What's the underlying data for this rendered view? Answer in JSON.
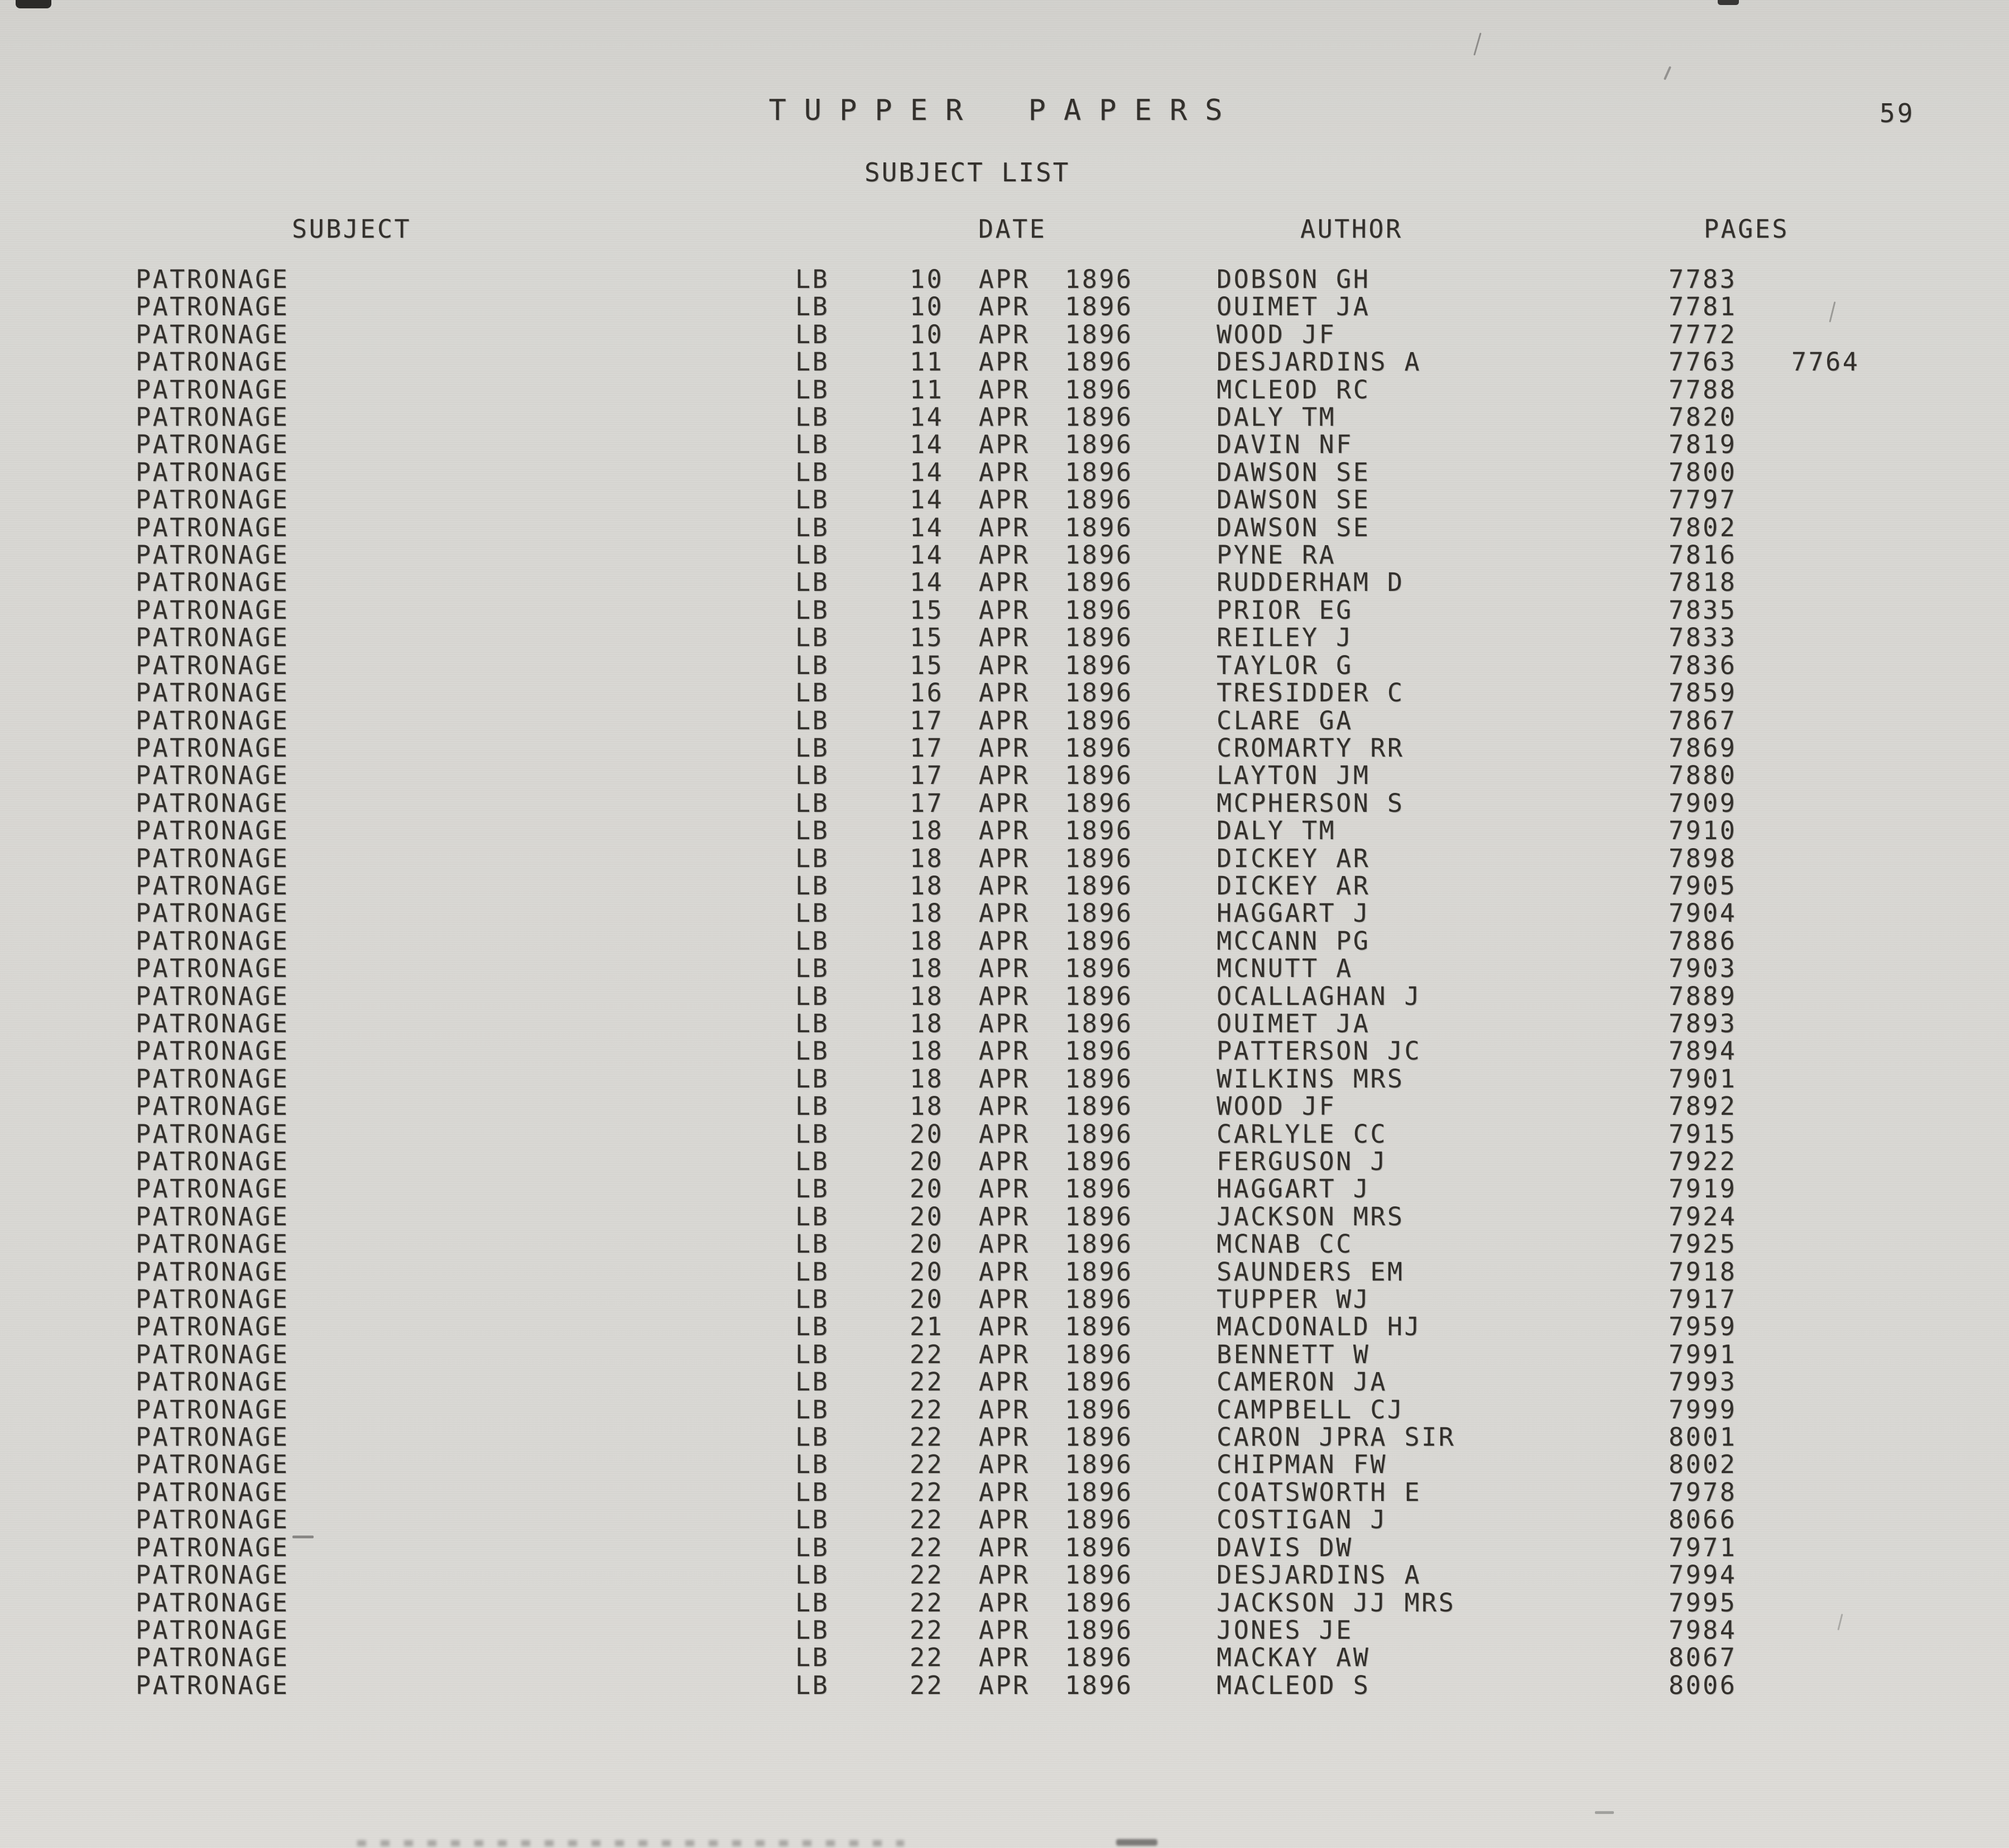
{
  "page": {
    "title": "TUPPER PAPERS",
    "subtitle": "SUBJECT LIST",
    "page_number": "59"
  },
  "colors": {
    "paper": "#d8d7d3",
    "ink": "#33302c"
  },
  "table": {
    "headers": {
      "subject": "SUBJECT",
      "date": "DATE",
      "author": "AUTHOR",
      "pages": "PAGES"
    },
    "rows": [
      {
        "subject": "PATRONAGE",
        "series": "LB",
        "date": "10 APR 1896",
        "author": "DOBSON GH",
        "page": "7783",
        "page2": ""
      },
      {
        "subject": "PATRONAGE",
        "series": "LB",
        "date": "10 APR 1896",
        "author": "OUIMET JA",
        "page": "7781",
        "page2": ""
      },
      {
        "subject": "PATRONAGE",
        "series": "LB",
        "date": "10 APR 1896",
        "author": "WOOD JF",
        "page": "7772",
        "page2": ""
      },
      {
        "subject": "PATRONAGE",
        "series": "LB",
        "date": "11 APR 1896",
        "author": "DESJARDINS A",
        "page": "7763",
        "page2": "7764"
      },
      {
        "subject": "PATRONAGE",
        "series": "LB",
        "date": "11 APR 1896",
        "author": "MCLEOD RC",
        "page": "7788",
        "page2": ""
      },
      {
        "subject": "PATRONAGE",
        "series": "LB",
        "date": "14 APR 1896",
        "author": "DALY TM",
        "page": "7820",
        "page2": ""
      },
      {
        "subject": "PATRONAGE",
        "series": "LB",
        "date": "14 APR 1896",
        "author": "DAVIN NF",
        "page": "7819",
        "page2": ""
      },
      {
        "subject": "PATRONAGE",
        "series": "LB",
        "date": "14 APR 1896",
        "author": "DAWSON SE",
        "page": "7800",
        "page2": ""
      },
      {
        "subject": "PATRONAGE",
        "series": "LB",
        "date": "14 APR 1896",
        "author": "DAWSON SE",
        "page": "7797",
        "page2": ""
      },
      {
        "subject": "PATRONAGE",
        "series": "LB",
        "date": "14 APR 1896",
        "author": "DAWSON SE",
        "page": "7802",
        "page2": ""
      },
      {
        "subject": "PATRONAGE",
        "series": "LB",
        "date": "14 APR 1896",
        "author": "PYNE RA",
        "page": "7816",
        "page2": ""
      },
      {
        "subject": "PATRONAGE",
        "series": "LB",
        "date": "14 APR 1896",
        "author": "RUDDERHAM D",
        "page": "7818",
        "page2": ""
      },
      {
        "subject": "PATRONAGE",
        "series": "LB",
        "date": "15 APR 1896",
        "author": "PRIOR EG",
        "page": "7835",
        "page2": ""
      },
      {
        "subject": "PATRONAGE",
        "series": "LB",
        "date": "15 APR 1896",
        "author": "REILEY J",
        "page": "7833",
        "page2": ""
      },
      {
        "subject": "PATRONAGE",
        "series": "LB",
        "date": "15 APR 1896",
        "author": "TAYLOR G",
        "page": "7836",
        "page2": ""
      },
      {
        "subject": "PATRONAGE",
        "series": "LB",
        "date": "16 APR 1896",
        "author": "TRESIDDER C",
        "page": "7859",
        "page2": ""
      },
      {
        "subject": "PATRONAGE",
        "series": "LB",
        "date": "17 APR 1896",
        "author": "CLARE GA",
        "page": "7867",
        "page2": ""
      },
      {
        "subject": "PATRONAGE",
        "series": "LB",
        "date": "17 APR 1896",
        "author": "CROMARTY RR",
        "page": "7869",
        "page2": ""
      },
      {
        "subject": "PATRONAGE",
        "series": "LB",
        "date": "17 APR 1896",
        "author": "LAYTON JM",
        "page": "7880",
        "page2": ""
      },
      {
        "subject": "PATRONAGE",
        "series": "LB",
        "date": "17 APR 1896",
        "author": "MCPHERSON S",
        "page": "7909",
        "page2": ""
      },
      {
        "subject": "PATRONAGE",
        "series": "LB",
        "date": "18 APR 1896",
        "author": "DALY TM",
        "page": "7910",
        "page2": ""
      },
      {
        "subject": "PATRONAGE",
        "series": "LB",
        "date": "18 APR 1896",
        "author": "DICKEY AR",
        "page": "7898",
        "page2": ""
      },
      {
        "subject": "PATRONAGE",
        "series": "LB",
        "date": "18 APR 1896",
        "author": "DICKEY AR",
        "page": "7905",
        "page2": ""
      },
      {
        "subject": "PATRONAGE",
        "series": "LB",
        "date": "18 APR 1896",
        "author": "HAGGART J",
        "page": "7904",
        "page2": ""
      },
      {
        "subject": "PATRONAGE",
        "series": "LB",
        "date": "18 APR 1896",
        "author": "MCCANN PG",
        "page": "7886",
        "page2": ""
      },
      {
        "subject": "PATRONAGE",
        "series": "LB",
        "date": "18 APR 1896",
        "author": "MCNUTT A",
        "page": "7903",
        "page2": ""
      },
      {
        "subject": "PATRONAGE",
        "series": "LB",
        "date": "18 APR 1896",
        "author": "OCALLAGHAN J",
        "page": "7889",
        "page2": ""
      },
      {
        "subject": "PATRONAGE",
        "series": "LB",
        "date": "18 APR 1896",
        "author": "OUIMET JA",
        "page": "7893",
        "page2": ""
      },
      {
        "subject": "PATRONAGE",
        "series": "LB",
        "date": "18 APR 1896",
        "author": "PATTERSON JC",
        "page": "7894",
        "page2": ""
      },
      {
        "subject": "PATRONAGE",
        "series": "LB",
        "date": "18 APR 1896",
        "author": "WILKINS MRS",
        "page": "7901",
        "page2": ""
      },
      {
        "subject": "PATRONAGE",
        "series": "LB",
        "date": "18 APR 1896",
        "author": "WOOD JF",
        "page": "7892",
        "page2": ""
      },
      {
        "subject": "PATRONAGE",
        "series": "LB",
        "date": "20 APR 1896",
        "author": "CARLYLE CC",
        "page": "7915",
        "page2": ""
      },
      {
        "subject": "PATRONAGE",
        "series": "LB",
        "date": "20 APR 1896",
        "author": "FERGUSON J",
        "page": "7922",
        "page2": ""
      },
      {
        "subject": "PATRONAGE",
        "series": "LB",
        "date": "20 APR 1896",
        "author": "HAGGART J",
        "page": "7919",
        "page2": ""
      },
      {
        "subject": "PATRONAGE",
        "series": "LB",
        "date": "20 APR 1896",
        "author": "JACKSON MRS",
        "page": "7924",
        "page2": ""
      },
      {
        "subject": "PATRONAGE",
        "series": "LB",
        "date": "20 APR 1896",
        "author": "MCNAB CC",
        "page": "7925",
        "page2": ""
      },
      {
        "subject": "PATRONAGE",
        "series": "LB",
        "date": "20 APR 1896",
        "author": "SAUNDERS EM",
        "page": "7918",
        "page2": ""
      },
      {
        "subject": "PATRONAGE",
        "series": "LB",
        "date": "20 APR 1896",
        "author": "TUPPER WJ",
        "page": "7917",
        "page2": ""
      },
      {
        "subject": "PATRONAGE",
        "series": "LB",
        "date": "21 APR 1896",
        "author": "MACDONALD HJ",
        "page": "7959",
        "page2": ""
      },
      {
        "subject": "PATRONAGE",
        "series": "LB",
        "date": "22 APR 1896",
        "author": "BENNETT W",
        "page": "7991",
        "page2": ""
      },
      {
        "subject": "PATRONAGE",
        "series": "LB",
        "date": "22 APR 1896",
        "author": "CAMERON JA",
        "page": "7993",
        "page2": ""
      },
      {
        "subject": "PATRONAGE",
        "series": "LB",
        "date": "22 APR 1896",
        "author": "CAMPBELL CJ",
        "page": "7999",
        "page2": ""
      },
      {
        "subject": "PATRONAGE",
        "series": "LB",
        "date": "22 APR 1896",
        "author": "CARON JPRA SIR",
        "page": "8001",
        "page2": ""
      },
      {
        "subject": "PATRONAGE",
        "series": "LB",
        "date": "22 APR 1896",
        "author": "CHIPMAN FW",
        "page": "8002",
        "page2": ""
      },
      {
        "subject": "PATRONAGE",
        "series": "LB",
        "date": "22 APR 1896",
        "author": "COATSWORTH E",
        "page": "7978",
        "page2": ""
      },
      {
        "subject": "PATRONAGE",
        "series": "LB",
        "date": "22 APR 1896",
        "author": "COSTIGAN J",
        "page": "8066",
        "page2": ""
      },
      {
        "subject": "PATRONAGE",
        "series": "LB",
        "date": "22 APR 1896",
        "author": "DAVIS DW",
        "page": "7971",
        "page2": ""
      },
      {
        "subject": "PATRONAGE",
        "series": "LB",
        "date": "22 APR 1896",
        "author": "DESJARDINS A",
        "page": "7994",
        "page2": ""
      },
      {
        "subject": "PATRONAGE",
        "series": "LB",
        "date": "22 APR 1896",
        "author": "JACKSON JJ MRS",
        "page": "7995",
        "page2": ""
      },
      {
        "subject": "PATRONAGE",
        "series": "LB",
        "date": "22 APR 1896",
        "author": "JONES JE",
        "page": "7984",
        "page2": ""
      },
      {
        "subject": "PATRONAGE",
        "series": "LB",
        "date": "22 APR 1896",
        "author": "MACKAY AW",
        "page": "8067",
        "page2": ""
      },
      {
        "subject": "PATRONAGE",
        "series": "LB",
        "date": "22 APR 1896",
        "author": "MACLEOD S",
        "page": "8006",
        "page2": ""
      }
    ]
  }
}
